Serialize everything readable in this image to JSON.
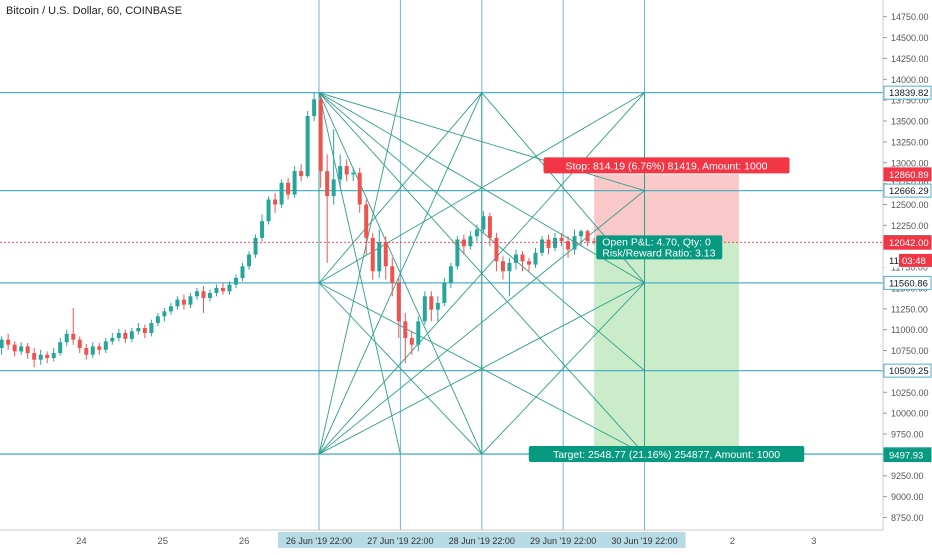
{
  "chart_data": {
    "type": "candlestick",
    "title": "Bitcoin / U.S. Dollar, 60, COINBASE",
    "ylim": [
      8600,
      14950
    ],
    "yticks": [
      8750,
      9000,
      9250,
      9500,
      9750,
      10000,
      10250,
      10500,
      10750,
      11000,
      11250,
      11500,
      11750,
      12000,
      12250,
      12500,
      12750,
      13000,
      13250,
      13500,
      13750,
      14000,
      14250,
      14500,
      14750
    ],
    "xlim": [
      0,
      10.85
    ],
    "xticks": [
      {
        "x": 1,
        "label": "24"
      },
      {
        "x": 2,
        "label": "25"
      },
      {
        "x": 3,
        "label": "26"
      },
      {
        "x": 9,
        "label": "2"
      },
      {
        "x": 10,
        "label": "3"
      }
    ],
    "time_badges": [
      {
        "x": 3.92,
        "label": "26 Jun '19   22:00"
      },
      {
        "x": 4.92,
        "label": "27 Jun '19   22:00"
      },
      {
        "x": 5.92,
        "label": "28 Jun '19   22:00"
      },
      {
        "x": 6.92,
        "label": "29 Jun '19   22:00"
      },
      {
        "x": 7.92,
        "label": "30 Jun '19   22:00"
      }
    ],
    "h_levels": [
      13839.82,
      12666.29,
      11560.86,
      10509.25,
      9509.59
    ],
    "v_lines": [
      3.92,
      4.92,
      5.92,
      6.92,
      7.92
    ],
    "fan_lines": [
      [
        [
          3.92,
          13839.82
        ],
        [
          7.92,
          9509.59
        ]
      ],
      [
        [
          3.92,
          13839.82
        ],
        [
          5.92,
          9509.59
        ]
      ],
      [
        [
          3.92,
          13839.82
        ],
        [
          7.92,
          11560.86
        ]
      ],
      [
        [
          3.92,
          13839.82
        ],
        [
          7.92,
          10509.25
        ]
      ],
      [
        [
          3.92,
          13839.82
        ],
        [
          7.92,
          12666.29
        ]
      ],
      [
        [
          3.92,
          13839.82
        ],
        [
          4.92,
          9509.59
        ]
      ],
      [
        [
          3.92,
          13839.82
        ],
        [
          3.92,
          11560.86
        ]
      ],
      [
        [
          3.92,
          9509.59
        ],
        [
          7.92,
          13839.82
        ]
      ],
      [
        [
          3.92,
          9509.59
        ],
        [
          5.92,
          13839.82
        ]
      ],
      [
        [
          3.92,
          9509.59
        ],
        [
          7.92,
          11560.86
        ]
      ],
      [
        [
          3.92,
          9509.59
        ],
        [
          7.92,
          12666.29
        ]
      ],
      [
        [
          3.92,
          9509.59
        ],
        [
          4.92,
          13839.82
        ]
      ],
      [
        [
          5.92,
          13839.82
        ],
        [
          3.92,
          11560.86
        ]
      ],
      [
        [
          5.92,
          13839.82
        ],
        [
          7.92,
          11560.86
        ]
      ],
      [
        [
          5.92,
          9509.59
        ],
        [
          3.92,
          11560.86
        ]
      ],
      [
        [
          5.92,
          9509.59
        ],
        [
          7.92,
          11560.86
        ]
      ],
      [
        [
          5.92,
          13839.82
        ],
        [
          5.92,
          9509.59
        ]
      ],
      [
        [
          3.92,
          11560.86
        ],
        [
          7.92,
          13839.82
        ]
      ],
      [
        [
          3.92,
          11560.86
        ],
        [
          7.92,
          9509.59
        ]
      ],
      [
        [
          7.92,
          13839.82
        ],
        [
          7.92,
          9509.59
        ]
      ]
    ],
    "candles": [
      [
        0.02,
        10780,
        10880,
        10700,
        10920
      ],
      [
        0.1,
        10880,
        10820,
        10760,
        10950
      ],
      [
        0.18,
        10820,
        10740,
        10680,
        10860
      ],
      [
        0.26,
        10740,
        10800,
        10700,
        10850
      ],
      [
        0.34,
        10800,
        10720,
        10650,
        10840
      ],
      [
        0.42,
        10720,
        10640,
        10550,
        10780
      ],
      [
        0.5,
        10640,
        10700,
        10580,
        10760
      ],
      [
        0.58,
        10700,
        10660,
        10600,
        10740
      ],
      [
        0.66,
        10660,
        10720,
        10620,
        10780
      ],
      [
        0.74,
        10720,
        10850,
        10690,
        10900
      ],
      [
        0.82,
        10850,
        10950,
        10800,
        11000
      ],
      [
        0.9,
        10950,
        10880,
        10820,
        11260
      ],
      [
        0.98,
        10880,
        10780,
        10720,
        10920
      ],
      [
        1.06,
        10780,
        10700,
        10640,
        10830
      ],
      [
        1.14,
        10700,
        10800,
        10660,
        10850
      ],
      [
        1.22,
        10800,
        10760,
        10700,
        10840
      ],
      [
        1.3,
        10760,
        10860,
        10720,
        10900
      ],
      [
        1.38,
        10860,
        10900,
        10820,
        10960
      ],
      [
        1.46,
        10900,
        10960,
        10860,
        11010
      ],
      [
        1.54,
        10960,
        10890,
        10840,
        11000
      ],
      [
        1.62,
        10890,
        10980,
        10850,
        11020
      ],
      [
        1.7,
        10980,
        11020,
        10940,
        11080
      ],
      [
        1.78,
        11020,
        10960,
        10900,
        11060
      ],
      [
        1.86,
        10960,
        11080,
        10920,
        11120
      ],
      [
        1.94,
        11080,
        11160,
        11040,
        11200
      ],
      [
        2.02,
        11160,
        11220,
        11100,
        11260
      ],
      [
        2.1,
        11220,
        11280,
        11180,
        11320
      ],
      [
        2.18,
        11280,
        11360,
        11240,
        11400
      ],
      [
        2.26,
        11360,
        11300,
        11240,
        11420
      ],
      [
        2.34,
        11300,
        11400,
        11260,
        11440
      ],
      [
        2.42,
        11400,
        11460,
        11360,
        11500
      ],
      [
        2.5,
        11460,
        11380,
        11200,
        11520
      ],
      [
        2.58,
        11380,
        11440,
        11340,
        11480
      ],
      [
        2.66,
        11440,
        11500,
        11400,
        11540
      ],
      [
        2.74,
        11500,
        11460,
        11420,
        11560
      ],
      [
        2.82,
        11460,
        11540,
        11420,
        11580
      ],
      [
        2.9,
        11540,
        11620,
        11500,
        11660
      ],
      [
        2.98,
        11620,
        11760,
        11580,
        11800
      ],
      [
        3.06,
        11760,
        11900,
        11720,
        11940
      ],
      [
        3.14,
        11900,
        12100,
        11860,
        12140
      ],
      [
        3.22,
        12100,
        12300,
        12060,
        12380
      ],
      [
        3.3,
        12300,
        12560,
        12260,
        12600
      ],
      [
        3.38,
        12560,
        12500,
        12400,
        12640
      ],
      [
        3.46,
        12500,
        12760,
        12460,
        12800
      ],
      [
        3.54,
        12760,
        12620,
        12560,
        12820
      ],
      [
        3.62,
        12620,
        12900,
        12580,
        12960
      ],
      [
        3.7,
        12900,
        12840,
        12780,
        12980
      ],
      [
        3.78,
        12840,
        13560,
        12820,
        13620
      ],
      [
        3.86,
        13560,
        13760,
        13500,
        13839
      ],
      [
        3.94,
        13760,
        12900,
        12700,
        13800
      ],
      [
        4.02,
        12900,
        12600,
        11800,
        13100
      ],
      [
        4.1,
        12600,
        12800,
        12500,
        13400
      ],
      [
        4.18,
        12800,
        12960,
        12700,
        13100
      ],
      [
        4.26,
        12960,
        12860,
        12780,
        13040
      ],
      [
        4.34,
        12860,
        12880,
        12780,
        12940
      ],
      [
        4.42,
        12880,
        12500,
        12400,
        12940
      ],
      [
        4.5,
        12500,
        12100,
        11900,
        12560
      ],
      [
        4.58,
        12100,
        11700,
        11600,
        12160
      ],
      [
        4.66,
        11700,
        12050,
        11620,
        12200
      ],
      [
        4.74,
        12050,
        11760,
        11600,
        12120
      ],
      [
        4.82,
        11760,
        11560,
        11400,
        11860
      ],
      [
        4.9,
        11560,
        11100,
        10900,
        11620
      ],
      [
        4.98,
        11100,
        10900,
        10600,
        11200
      ],
      [
        5.06,
        10900,
        10820,
        10700,
        10980
      ],
      [
        5.14,
        10820,
        11100,
        10740,
        11160
      ],
      [
        5.22,
        11100,
        11400,
        11060,
        11460
      ],
      [
        5.3,
        11400,
        11240,
        11100,
        11460
      ],
      [
        5.38,
        11240,
        11320,
        11100,
        11400
      ],
      [
        5.46,
        11320,
        11560,
        11280,
        11620
      ],
      [
        5.54,
        11560,
        11760,
        11500,
        11800
      ],
      [
        5.62,
        11760,
        12080,
        11720,
        12120
      ],
      [
        5.7,
        12080,
        12000,
        11900,
        12140
      ],
      [
        5.78,
        12000,
        12120,
        11960,
        12180
      ],
      [
        5.86,
        12120,
        12200,
        12060,
        12260
      ],
      [
        5.94,
        12200,
        12360,
        12160,
        12420
      ],
      [
        6.02,
        12360,
        12100,
        12000,
        12400
      ],
      [
        6.1,
        12100,
        11820,
        11700,
        12160
      ],
      [
        6.18,
        11820,
        11700,
        11600,
        11880
      ],
      [
        6.26,
        11700,
        11800,
        11400,
        11860
      ],
      [
        6.34,
        11800,
        11900,
        11720,
        11960
      ],
      [
        6.42,
        11900,
        11820,
        11700,
        11940
      ],
      [
        6.5,
        11820,
        11780,
        11700,
        11860
      ],
      [
        6.58,
        11780,
        11920,
        11740,
        11980
      ],
      [
        6.66,
        11920,
        12080,
        11880,
        12120
      ],
      [
        6.74,
        12080,
        11980,
        11900,
        12140
      ],
      [
        6.82,
        11980,
        12100,
        11940,
        12160
      ],
      [
        6.9,
        12100,
        12060,
        12000,
        12160
      ],
      [
        6.98,
        12060,
        11960,
        11860,
        12120
      ],
      [
        7.06,
        11960,
        12120,
        11900,
        12200
      ],
      [
        7.14,
        12120,
        12180,
        12000,
        12200
      ],
      [
        7.22,
        12180,
        12060,
        12000,
        12200
      ],
      [
        7.3,
        12060,
        12046.7,
        12020,
        12100
      ]
    ],
    "position": {
      "x_start": 7.3,
      "x_end": 9.08,
      "entry": 12046.7,
      "stop": 12860.89,
      "target": 9497.93,
      "stop_label": "Stop: 814.19 (6.76%) 81419, Amount: 1000",
      "target_label": "Target: 2548.77 (21.16%) 254877, Amount: 1000",
      "pnl_label_1": "Open P&L: 4.70, Qty: 0",
      "pnl_label_2": "Risk/Reward Ratio: 3.13"
    },
    "price_tags": [
      {
        "value": 13839.82,
        "label": "13839.82",
        "bg": "#ffffff",
        "fg": "#131722",
        "border": "#4fb0c6"
      },
      {
        "value": 12860.89,
        "label": "12860.89",
        "bg": "#f23645",
        "fg": "#ffffff",
        "border": "#f23645"
      },
      {
        "value": 12666.29,
        "label": "12666.29",
        "bg": "#ffffff",
        "fg": "#131722",
        "border": "#4fb0c6"
      },
      {
        "value": 12046.7,
        "label": "12046.70",
        "bg": "#ffffff",
        "fg": "#131722",
        "border": "#131722"
      },
      {
        "value": 12042.0,
        "label": "12042.00",
        "bg": "#f23645",
        "fg": "#ffffff",
        "border": "#f23645"
      },
      {
        "value": 11830.0,
        "label": "11",
        "bg": "#ffffff",
        "fg": "#131722",
        "border": "#ffffff"
      },
      {
        "value": 11560.86,
        "label": "11560.86",
        "bg": "#ffffff",
        "fg": "#131722",
        "border": "#4fb0c6"
      },
      {
        "value": 10509.25,
        "label": "10509.25",
        "bg": "#ffffff",
        "fg": "#131722",
        "border": "#4fb0c6"
      },
      {
        "value": 9509.59,
        "label": "9509.59",
        "bg": "#ffffff",
        "fg": "#131722",
        "border": "#4fb0c6"
      },
      {
        "value": 9497.93,
        "label": "9497.93",
        "bg": "#089981",
        "fg": "#ffffff",
        "border": "#089981"
      }
    ],
    "countdown": "03:48",
    "colors": {
      "up": "#26a69a",
      "down": "#ef5350",
      "level": "#4fb0c6",
      "vline": "#6ab7d3",
      "fan": "#2e9e8a",
      "stop_zone": "#f7b7b7",
      "target_zone": "#b9e5b7",
      "stop_tag": "#f23645",
      "target_tag": "#089981",
      "badge": "#b7dbe6"
    },
    "grid": false
  }
}
